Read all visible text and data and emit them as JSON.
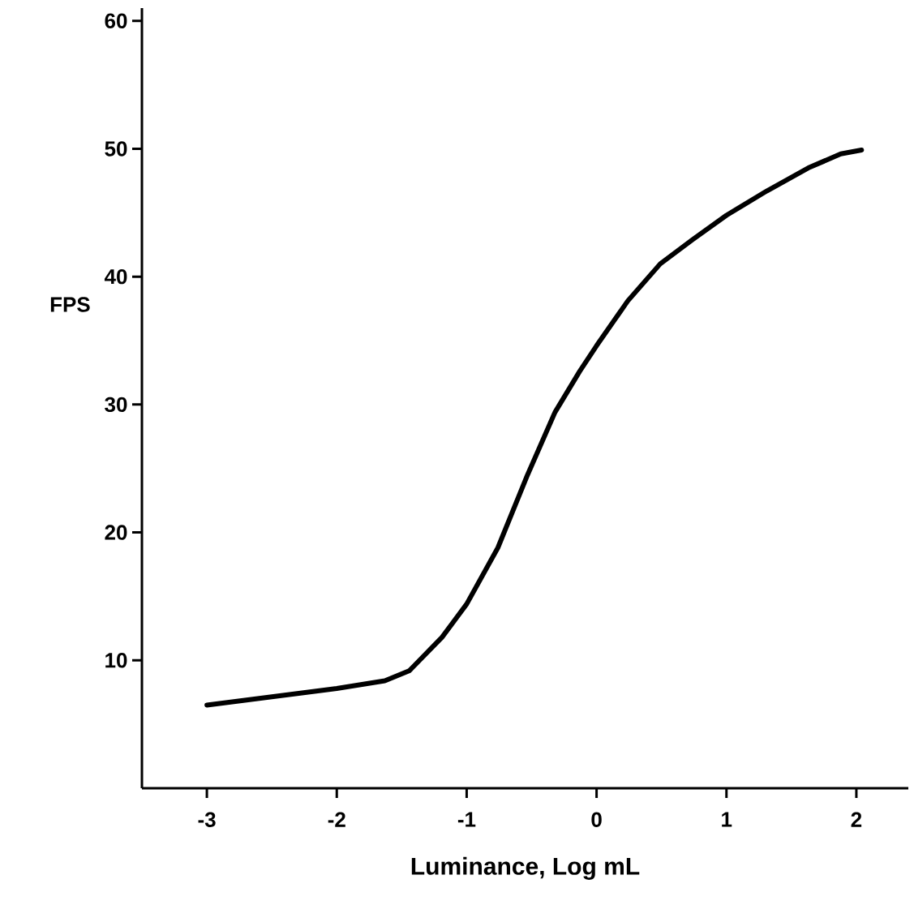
{
  "chart_data": {
    "type": "line",
    "xlabel": "Luminance, Log  mL",
    "ylabel": "FPS",
    "xlim": [
      -3.5,
      2.4
    ],
    "ylim": [
      0,
      61
    ],
    "xticks": [
      -3,
      -2,
      -1,
      0,
      1,
      2
    ],
    "yticks": [
      10,
      20,
      30,
      40,
      50,
      60
    ],
    "line_style": "solid",
    "series": [
      {
        "color": "#000000",
        "x": [
          -3,
          -2,
          -1.63,
          -1.44,
          -1.19,
          -1,
          -0.76,
          -0.54,
          -0.32,
          -0.13,
          0,
          0.24,
          0.49,
          0.74,
          1,
          1.31,
          1.63,
          1.88,
          2.04
        ],
        "values": [
          6.5,
          7.8,
          8.4,
          9.2,
          11.8,
          14.4,
          18.8,
          24.3,
          29.4,
          32.6,
          34.6,
          38.1,
          41,
          42.9,
          44.8,
          46.7,
          48.5,
          49.6,
          49.9
        ]
      }
    ]
  }
}
